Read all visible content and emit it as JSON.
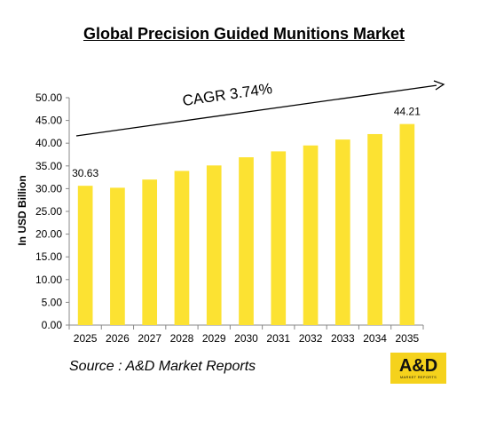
{
  "chart_data": {
    "type": "bar",
    "title": "Global Precision Guided Munitions Market",
    "ylabel": "In USD Billion",
    "xlabel": "",
    "categories": [
      "2025",
      "2026",
      "2027",
      "2028",
      "2029",
      "2030",
      "2031",
      "2032",
      "2033",
      "2034",
      "2035"
    ],
    "values": [
      30.63,
      30.2,
      32.0,
      33.9,
      35.1,
      36.9,
      38.2,
      39.5,
      40.8,
      42.0,
      44.21
    ],
    "ylim": [
      0,
      50
    ],
    "yticks": [
      "0.00",
      "5.00",
      "10.00",
      "15.00",
      "20.00",
      "25.00",
      "30.00",
      "35.00",
      "40.00",
      "45.00",
      "50.00"
    ],
    "data_labels": {
      "first": "30.63",
      "last": "44.21"
    },
    "annotation": "CAGR 3.74%",
    "bar_color": "#fce232",
    "grid": false,
    "legend": "none"
  },
  "footer": {
    "source": "Source : A&D Market Reports",
    "logo_text": "A&D",
    "logo_subtext": "MARKET REPORTS",
    "logo_color": "#f5d21c"
  }
}
